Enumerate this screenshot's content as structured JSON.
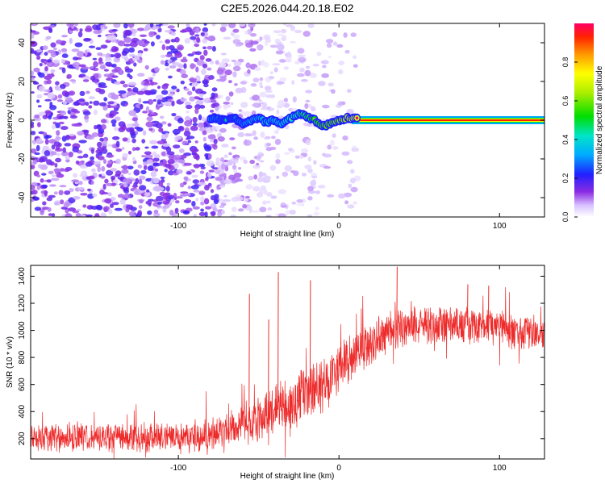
{
  "page_title": "C2E5.2026.044.20.18.E02",
  "chart_data": [
    {
      "type": "heatmap",
      "title": "C2E5.2026.044.20.18.E02",
      "xlabel": "Height of straight line (km)",
      "ylabel": "Frequency (Hz)",
      "xlim": [
        -192,
        128
      ],
      "ylim": [
        -50,
        50
      ],
      "x_ticks": [
        -100,
        0,
        100
      ],
      "x_tick_labels": [
        "-100",
        "0",
        "100"
      ],
      "y_ticks": [
        -40,
        -20,
        0,
        20,
        40
      ],
      "y_tick_labels": [
        "-40",
        "-20",
        "0",
        "20",
        "40"
      ],
      "colorbar": {
        "label": "Normalized spectral amplitude",
        "range": [
          0,
          1
        ],
        "ticks": [
          0,
          0.2,
          0.4,
          0.6,
          0.8
        ],
        "tick_labels": [
          "0.0",
          "0.2",
          "0.4",
          "0.6",
          "0.8"
        ]
      },
      "signal_track": {
        "x": [
          -78,
          -72,
          -65,
          -60,
          -55,
          -50,
          -45,
          -40,
          -35,
          -30,
          -25,
          -20,
          -15,
          -10,
          -5,
          0,
          5,
          10,
          20,
          40,
          60,
          80,
          100,
          128
        ],
        "freq": [
          1,
          0,
          1,
          -2,
          0,
          1,
          -1,
          0,
          -2,
          1,
          3,
          2,
          0,
          -3,
          -2,
          0,
          1,
          1,
          0,
          0,
          0,
          0,
          0,
          0
        ],
        "amplitude": [
          0.35,
          0.3,
          0.3,
          0.35,
          0.4,
          0.4,
          0.42,
          0.45,
          0.45,
          0.5,
          0.55,
          0.6,
          0.65,
          0.7,
          0.72,
          0.75,
          0.8,
          0.85,
          0.9,
          0.92,
          0.92,
          0.92,
          0.92,
          0.92
        ]
      },
      "noise_region": {
        "x_range": [
          -192,
          -60
        ],
        "typical_amplitude": 0.12
      }
    },
    {
      "type": "line",
      "title": "",
      "xlabel": "Height of straight line (km)",
      "ylabel": "SNR (10 * v/v)",
      "xlim": [
        -192,
        128
      ],
      "ylim": [
        50,
        1480
      ],
      "x_ticks": [
        -100,
        0,
        100
      ],
      "x_tick_labels": [
        "-100",
        "0",
        "100"
      ],
      "y_ticks": [
        200,
        400,
        600,
        800,
        1000,
        1200,
        1400
      ],
      "y_tick_labels": [
        "200",
        "400",
        "600",
        "800",
        "1000",
        "1200",
        "1400"
      ],
      "series": [
        {
          "name": "SNR",
          "color": "#ee2b2b",
          "envelope_x": [
            -192,
            -160,
            -120,
            -90,
            -75,
            -65,
            -55,
            -45,
            -35,
            -25,
            -15,
            -5,
            5,
            15,
            25,
            35,
            50,
            70,
            90,
            110,
            128
          ],
          "envelope_mean": [
            210,
            210,
            215,
            220,
            240,
            290,
            330,
            380,
            430,
            490,
            560,
            650,
            760,
            870,
            950,
            1000,
            1030,
            1040,
            1030,
            1000,
            960
          ],
          "envelope_spread": [
            110,
            110,
            110,
            110,
            120,
            140,
            160,
            180,
            200,
            210,
            210,
            210,
            200,
            180,
            160,
            150,
            140,
            140,
            140,
            140,
            130
          ],
          "spikes": [
            {
              "x": -56,
              "y": 1270
            },
            {
              "x": -44,
              "y": 1080
            },
            {
              "x": -38,
              "y": 1430
            },
            {
              "x": -18,
              "y": 1370
            },
            {
              "x": 36,
              "y": 1470
            },
            {
              "x": 80,
              "y": 1340
            },
            {
              "x": 93,
              "y": 1330
            }
          ]
        }
      ]
    }
  ]
}
